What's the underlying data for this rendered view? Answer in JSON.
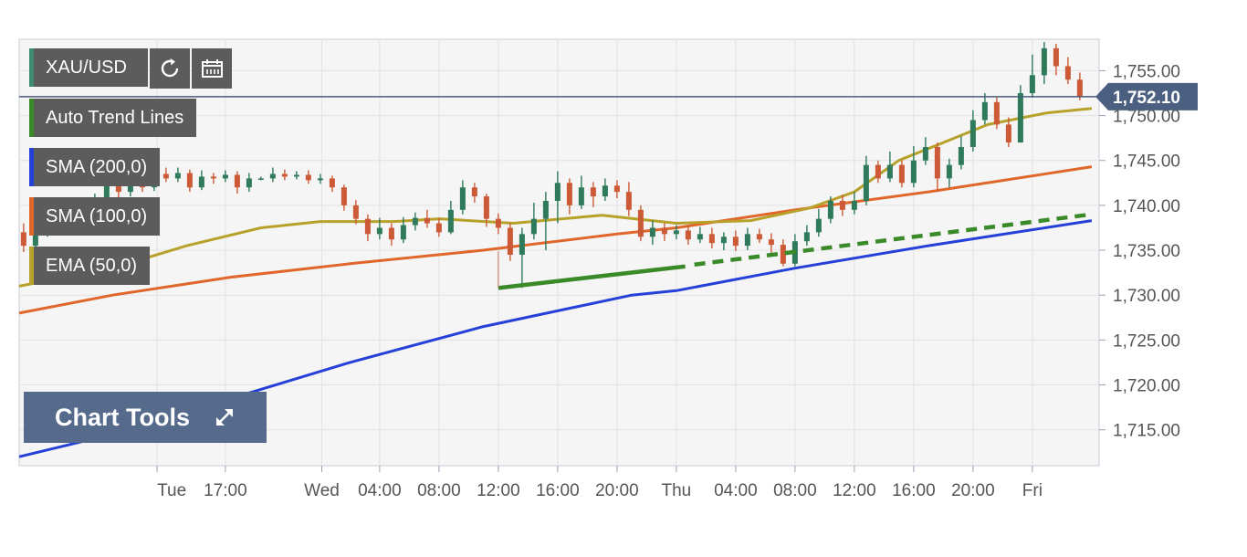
{
  "symbol": "XAU/USD",
  "icons": {
    "refresh": "refresh-icon",
    "calendar": "calendar-icon",
    "expand": "expand-arrows-icon"
  },
  "indicators": [
    {
      "id": "trend",
      "label": "Auto Trend Lines",
      "color": "#3a8a2a"
    },
    {
      "id": "sma200",
      "label": "SMA (200,0)",
      "color": "#2540d8"
    },
    {
      "id": "sma100",
      "label": "SMA (100,0)",
      "color": "#e0662a"
    },
    {
      "id": "ema50",
      "label": "EMA (50,0)",
      "color": "#b8a12a"
    }
  ],
  "chart_tools_label": "Chart Tools",
  "chart_data": {
    "type": "line",
    "instrument": "XAU/USD",
    "current_price": "1,752.10",
    "ylim": [
      1711,
      1758.5
    ],
    "y_ticks": [
      "1,715.00",
      "1,720.00",
      "1,725.00",
      "1,730.00",
      "1,735.00",
      "1,740.00",
      "1,745.00",
      "1,750.00",
      "1,755.00"
    ],
    "x_ticks": [
      "Tue",
      "17:00",
      "Wed",
      "04:00",
      "08:00",
      "12:00",
      "16:00",
      "20:00",
      "Thu",
      "04:00",
      "08:00",
      "12:00",
      "16:00",
      "20:00",
      "Fri"
    ],
    "x_tick_hours": [
      0,
      4.6,
      11.1,
      15,
      19,
      23,
      27,
      31,
      35,
      39,
      43,
      47,
      51,
      55,
      59
    ],
    "x_range_hours": [
      -9.3,
      63.5
    ],
    "colors": {
      "up": "#2e7a5a",
      "down": "#cc5a36",
      "sma200": "#2540d8",
      "sma100": "#e0662a",
      "ema50": "#b8a12a",
      "trend": "#3a8a2a"
    },
    "series": [
      {
        "name": "SMA (200,0)",
        "key": "sma200",
        "points": [
          [
            -9.3,
            1712.0
          ],
          [
            -3,
            1714.5
          ],
          [
            5,
            1718.5
          ],
          [
            13,
            1722.5
          ],
          [
            22,
            1726.5
          ],
          [
            32,
            1730.0
          ],
          [
            35,
            1730.5
          ],
          [
            43,
            1733.0
          ],
          [
            52,
            1735.5
          ],
          [
            63,
            1738.3
          ]
        ]
      },
      {
        "name": "SMA (100,0)",
        "key": "sma100",
        "points": [
          [
            -9.3,
            1728.0
          ],
          [
            -3,
            1730.0
          ],
          [
            5,
            1732.0
          ],
          [
            13,
            1733.5
          ],
          [
            22,
            1735.0
          ],
          [
            31,
            1736.8
          ],
          [
            35,
            1737.5
          ],
          [
            43,
            1739.5
          ],
          [
            52,
            1741.5
          ],
          [
            63,
            1744.3
          ]
        ]
      },
      {
        "name": "EMA (50,0)",
        "key": "ema50",
        "points": [
          [
            -9.3,
            1731.0
          ],
          [
            -3,
            1733.0
          ],
          [
            2,
            1735.5
          ],
          [
            7,
            1737.5
          ],
          [
            11,
            1738.2
          ],
          [
            16,
            1738.2
          ],
          [
            19,
            1738.5
          ],
          [
            24,
            1738.0
          ],
          [
            30,
            1738.9
          ],
          [
            35,
            1738.0
          ],
          [
            40,
            1738.3
          ],
          [
            44,
            1739.7
          ],
          [
            47,
            1741.5
          ],
          [
            50,
            1745.0
          ],
          [
            53,
            1747.0
          ],
          [
            56,
            1749.0
          ],
          [
            60,
            1750.3
          ],
          [
            63,
            1750.8
          ]
        ]
      }
    ],
    "trend_line": {
      "start": [
        23,
        1730.8
      ],
      "end": [
        35.6,
        1733.2
      ],
      "projected_end": [
        63,
        1739.0
      ]
    },
    "candles": [
      [
        -9.0,
        1737.0,
        1735.5,
        1738.0,
        1734.8
      ],
      [
        -8.2,
        1735.5,
        1737.0,
        1737.8,
        1735.0
      ],
      [
        -7.4,
        1737.0,
        1738.5,
        1739.2,
        1736.5
      ],
      [
        -6.6,
        1738.5,
        1737.5,
        1739.0,
        1737.0
      ],
      [
        -5.8,
        1737.5,
        1739.0,
        1740.5,
        1737.2
      ],
      [
        -5.0,
        1739.0,
        1738.0,
        1739.8,
        1737.2
      ],
      [
        -4.2,
        1738.0,
        1740.5,
        1741.3,
        1737.8
      ],
      [
        -3.4,
        1740.5,
        1742.5,
        1743.6,
        1740.0
      ],
      [
        -2.6,
        1742.5,
        1741.5,
        1743.3,
        1740.8
      ],
      [
        -1.8,
        1741.5,
        1743.0,
        1744.0,
        1741.0
      ],
      [
        -1.0,
        1743.0,
        1742.0,
        1743.8,
        1741.5
      ],
      [
        -0.2,
        1742.0,
        1743.5,
        1744.5,
        1741.6
      ],
      [
        0.6,
        1743.5,
        1743.0,
        1744.2,
        1742.6
      ],
      [
        1.4,
        1743.0,
        1743.6,
        1744.2,
        1742.6
      ],
      [
        2.2,
        1743.6,
        1742.0,
        1744.0,
        1741.5
      ],
      [
        3.0,
        1742.0,
        1743.2,
        1743.9,
        1741.7
      ],
      [
        3.8,
        1743.2,
        1743.0,
        1743.6,
        1742.4
      ],
      [
        4.6,
        1743.0,
        1743.4,
        1743.9,
        1742.6
      ],
      [
        5.4,
        1743.4,
        1742.0,
        1743.8,
        1741.3
      ],
      [
        6.2,
        1742.0,
        1743.0,
        1743.6,
        1741.5
      ],
      [
        7.0,
        1743.0,
        1743.0,
        1743.2,
        1742.8
      ],
      [
        7.8,
        1743.0,
        1743.5,
        1744.2,
        1742.6
      ],
      [
        8.6,
        1743.5,
        1743.2,
        1744.0,
        1742.8
      ],
      [
        9.4,
        1743.2,
        1743.4,
        1743.8,
        1742.9
      ],
      [
        10.2,
        1743.4,
        1742.8,
        1743.9,
        1742.4
      ],
      [
        11.0,
        1742.8,
        1743.0,
        1743.5,
        1742.4
      ],
      [
        11.8,
        1743.0,
        1742.0,
        1743.3,
        1741.5
      ],
      [
        12.6,
        1742.0,
        1740.0,
        1742.3,
        1739.4
      ],
      [
        13.4,
        1740.0,
        1738.5,
        1740.6,
        1737.9
      ],
      [
        14.2,
        1738.5,
        1736.8,
        1739.0,
        1736.0
      ],
      [
        15.0,
        1736.8,
        1737.5,
        1738.6,
        1736.2
      ],
      [
        15.8,
        1737.5,
        1736.2,
        1738.0,
        1735.5
      ],
      [
        16.6,
        1736.2,
        1737.8,
        1738.7,
        1735.8
      ],
      [
        17.4,
        1737.8,
        1738.6,
        1739.2,
        1737.2
      ],
      [
        18.2,
        1738.6,
        1738.0,
        1739.5,
        1737.5
      ],
      [
        19.0,
        1738.0,
        1737.0,
        1738.6,
        1736.5
      ],
      [
        19.8,
        1737.0,
        1739.5,
        1740.5,
        1736.8
      ],
      [
        20.6,
        1739.5,
        1742.0,
        1742.8,
        1739.0
      ],
      [
        21.4,
        1742.0,
        1741.0,
        1742.5,
        1740.3
      ],
      [
        22.2,
        1741.0,
        1738.5,
        1741.3,
        1737.6
      ],
      [
        23.0,
        1738.5,
        1737.5,
        1739.1,
        1736.8
      ],
      [
        23.8,
        1737.5,
        1734.5,
        1738.0,
        1733.8
      ],
      [
        24.6,
        1734.5,
        1736.8,
        1737.5,
        1730.8
      ],
      [
        25.4,
        1736.8,
        1738.5,
        1740.3,
        1736.2
      ],
      [
        26.2,
        1738.5,
        1740.5,
        1741.5,
        1735.0
      ],
      [
        27.0,
        1740.5,
        1742.5,
        1743.8,
        1738.0
      ],
      [
        27.8,
        1742.5,
        1740.0,
        1743.0,
        1739.0
      ],
      [
        28.6,
        1740.0,
        1742.0,
        1743.3,
        1739.6
      ],
      [
        29.4,
        1742.0,
        1741.0,
        1742.6,
        1739.8
      ],
      [
        30.2,
        1741.0,
        1742.2,
        1743.0,
        1740.5
      ],
      [
        31.0,
        1742.2,
        1741.5,
        1742.8,
        1740.8
      ],
      [
        31.8,
        1741.5,
        1739.5,
        1742.6,
        1738.8
      ],
      [
        32.6,
        1739.5,
        1736.5,
        1740.0,
        1736.0
      ],
      [
        33.4,
        1736.5,
        1737.5,
        1738.3,
        1735.6
      ],
      [
        34.2,
        1737.5,
        1736.8,
        1738.0,
        1736.0
      ],
      [
        35.0,
        1736.8,
        1737.2,
        1737.8,
        1736.2
      ],
      [
        35.8,
        1737.2,
        1736.2,
        1737.8,
        1735.6
      ],
      [
        36.6,
        1736.2,
        1736.8,
        1737.6,
        1735.8
      ],
      [
        37.4,
        1736.8,
        1735.8,
        1737.5,
        1735.2
      ],
      [
        38.2,
        1735.8,
        1736.5,
        1737.0,
        1735.0
      ],
      [
        39.0,
        1736.5,
        1735.5,
        1737.2,
        1734.9
      ],
      [
        39.8,
        1735.5,
        1736.8,
        1737.5,
        1735.0
      ],
      [
        40.6,
        1736.8,
        1736.2,
        1737.4,
        1735.8
      ],
      [
        41.4,
        1736.2,
        1735.6,
        1736.9,
        1734.6
      ],
      [
        42.2,
        1735.6,
        1733.5,
        1736.2,
        1733.2
      ],
      [
        43.0,
        1733.5,
        1736.0,
        1736.8,
        1733.2
      ],
      [
        43.8,
        1736.0,
        1737.0,
        1737.8,
        1735.5
      ],
      [
        44.6,
        1737.0,
        1738.5,
        1739.6,
        1736.5
      ],
      [
        45.4,
        1738.5,
        1740.5,
        1741.0,
        1738.0
      ],
      [
        46.2,
        1740.5,
        1739.5,
        1741.2,
        1738.8
      ],
      [
        47.0,
        1739.5,
        1740.5,
        1741.5,
        1739.0
      ],
      [
        47.8,
        1740.5,
        1744.5,
        1745.5,
        1740.0
      ],
      [
        48.6,
        1744.5,
        1743.0,
        1745.0,
        1742.5
      ],
      [
        49.4,
        1743.0,
        1744.5,
        1746.0,
        1742.6
      ],
      [
        50.2,
        1744.5,
        1742.5,
        1745.0,
        1742.0
      ],
      [
        51.0,
        1742.5,
        1745.0,
        1746.6,
        1742.0
      ],
      [
        51.8,
        1745.0,
        1746.5,
        1747.6,
        1744.5
      ],
      [
        52.6,
        1746.5,
        1743.0,
        1747.0,
        1741.5
      ],
      [
        53.4,
        1743.0,
        1744.5,
        1745.2,
        1742.0
      ],
      [
        54.2,
        1744.5,
        1746.5,
        1747.7,
        1744.0
      ],
      [
        55.0,
        1746.5,
        1749.5,
        1750.6,
        1746.0
      ],
      [
        55.8,
        1749.5,
        1751.5,
        1752.5,
        1749.0
      ],
      [
        56.6,
        1751.5,
        1749.0,
        1752.0,
        1748.5
      ],
      [
        57.4,
        1749.0,
        1747.0,
        1749.8,
        1746.5
      ],
      [
        58.2,
        1747.0,
        1752.5,
        1753.4,
        1747.0
      ],
      [
        59.0,
        1752.5,
        1754.5,
        1756.8,
        1752.0
      ],
      [
        59.8,
        1754.5,
        1757.5,
        1758.2,
        1753.5
      ],
      [
        60.6,
        1757.5,
        1755.5,
        1758.0,
        1754.5
      ],
      [
        61.4,
        1755.5,
        1754.0,
        1756.5,
        1753.5
      ],
      [
        62.2,
        1754.0,
        1752.1,
        1754.8,
        1751.7
      ]
    ]
  }
}
